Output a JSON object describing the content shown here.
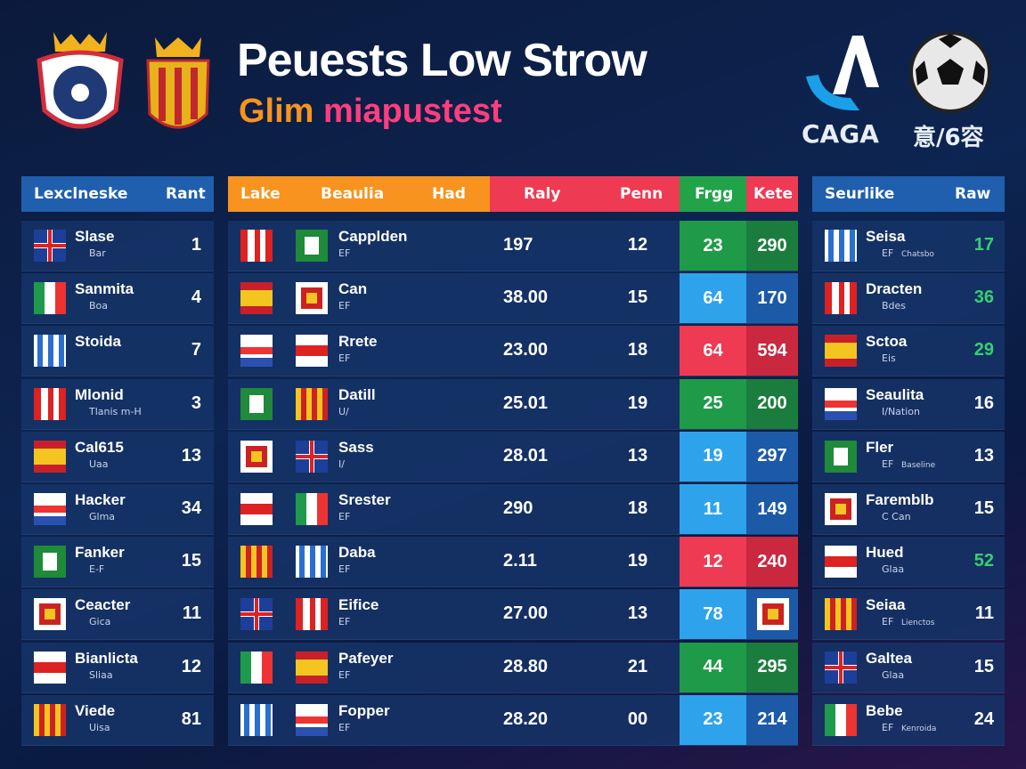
{
  "header": {
    "title": "Peuests Low Strow",
    "subtitle": {
      "part1": "Glim",
      "part2": "miapustest"
    },
    "brand": "CAGA",
    "brand_alt": "意/6容"
  },
  "left_table": {
    "columns": [
      "Lexclneske",
      "Rant"
    ],
    "rows": [
      {
        "name": "Slase",
        "sub": "Bar",
        "rank": "1"
      },
      {
        "name": "Sanmita",
        "sub": "Boa",
        "rank": "4"
      },
      {
        "name": "Stoida",
        "rank": "7"
      },
      {
        "name": "Mlonid",
        "sub": "Tlanis m-H",
        "rank": "3"
      },
      {
        "name": "Cal615",
        "sub": "Uaa",
        "rank": "13"
      },
      {
        "name": "Hacker",
        "sub": "Glma",
        "rank": "34"
      },
      {
        "name": "Fanker",
        "sub": "E-F",
        "rank": "15"
      },
      {
        "name": "Ceacter",
        "sub": "Gica",
        "rank": "11"
      },
      {
        "name": "Bianlicta",
        "sub": "Sliaa",
        "rank": "12"
      },
      {
        "name": "Viede",
        "sub": "Uisa",
        "rank": "81"
      }
    ]
  },
  "main_table": {
    "columns": [
      "Lake",
      "Beaulia",
      "Had",
      "Raly",
      "Penn",
      "Frgg",
      "Kete"
    ],
    "rows": [
      {
        "name": "Capplden",
        "sub": "EF",
        "raly": "197",
        "penn": "12",
        "frgg": "23",
        "kete": "290",
        "color": "green"
      },
      {
        "name": "Can",
        "sub": "EF",
        "raly": "38.00",
        "penn": "15",
        "frgg": "64",
        "kete": "170",
        "color": "blue"
      },
      {
        "name": "Rrete",
        "sub": "EF",
        "raly": "23.00",
        "penn": "18",
        "frgg": "64",
        "kete": "594",
        "color": "red"
      },
      {
        "name": "Datill",
        "sub": "U/",
        "raly": "25.01",
        "penn": "19",
        "frgg": "25",
        "kete": "200",
        "color": "green"
      },
      {
        "name": "Sass",
        "sub": "I/",
        "raly": "28.01",
        "penn": "13",
        "frgg": "19",
        "kete": "297",
        "color": "blue"
      },
      {
        "name": "Srester",
        "sub": "EF",
        "raly": "290",
        "penn": "18",
        "frgg": "11",
        "kete": "149",
        "color": "blue"
      },
      {
        "name": "Daba",
        "sub": "EF",
        "raly": "2.11",
        "penn": "19",
        "frgg": "12",
        "kete": "240",
        "color": "red"
      },
      {
        "name": "Eifice",
        "sub": "EF",
        "raly": "27.00",
        "penn": "13",
        "frgg": "78",
        "color": "blue"
      },
      {
        "name": "Pafeyer",
        "sub": "EF",
        "raly": "28.80",
        "penn": "21",
        "frgg": "44",
        "kete": "295",
        "color": "green"
      },
      {
        "name": "Fopper",
        "sub": "EF",
        "raly": "28.20",
        "penn": "00",
        "frgg": "23",
        "kete": "214",
        "color": "blue"
      }
    ]
  },
  "right_table": {
    "columns": [
      "Seurlike",
      "Raw"
    ],
    "rows": [
      {
        "name": "Seisa",
        "sub": "EF",
        "note": "Chatsbo",
        "raw": "17",
        "highlight": true
      },
      {
        "name": "Dracten",
        "sub": "Bdes",
        "raw": "36",
        "highlight": true
      },
      {
        "name": "Sctoa",
        "sub": "Eis",
        "raw": "29",
        "highlight": true
      },
      {
        "name": "Seaulita",
        "sub": "I/Nation",
        "raw": "16"
      },
      {
        "name": "Fler",
        "sub": "EF",
        "note": "Baseline",
        "raw": "13"
      },
      {
        "name": "Faremblb",
        "sub": "C Can",
        "raw": "15"
      },
      {
        "name": "Hued",
        "sub": "Glaa",
        "raw": "52",
        "highlight": true
      },
      {
        "name": "Seiaa",
        "sub": "EF",
        "note": "Lienctos",
        "raw": "11"
      },
      {
        "name": "Galtea",
        "sub": "Glaa",
        "raw": "15"
      },
      {
        "name": "Bebe",
        "sub": "EF",
        "note": "Kenroida",
        "raw": "24"
      }
    ]
  }
}
